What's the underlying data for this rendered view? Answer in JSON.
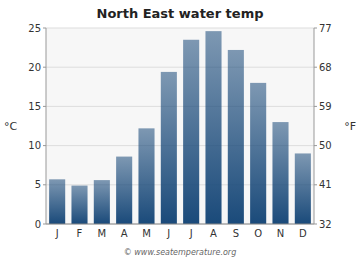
{
  "chart_data": {
    "type": "bar",
    "title": "North East water temp",
    "categories": [
      "J",
      "F",
      "M",
      "A",
      "M",
      "J",
      "J",
      "A",
      "S",
      "O",
      "N",
      "D"
    ],
    "values": [
      5.7,
      4.9,
      5.6,
      8.6,
      12.2,
      19.4,
      23.5,
      24.6,
      22.2,
      18.0,
      13.0,
      9.0
    ],
    "color": "#1a4a7a",
    "ylabel": "°C",
    "y2label": "°F",
    "ylim": [
      0,
      25
    ],
    "yticks": [
      0,
      5,
      10,
      15,
      20,
      25
    ],
    "y2lim": [
      32,
      77
    ],
    "y2ticks": [
      32,
      41,
      50,
      59,
      68,
      77
    ],
    "grid": true,
    "annotations": [
      "© www.seatemperature.org"
    ]
  }
}
